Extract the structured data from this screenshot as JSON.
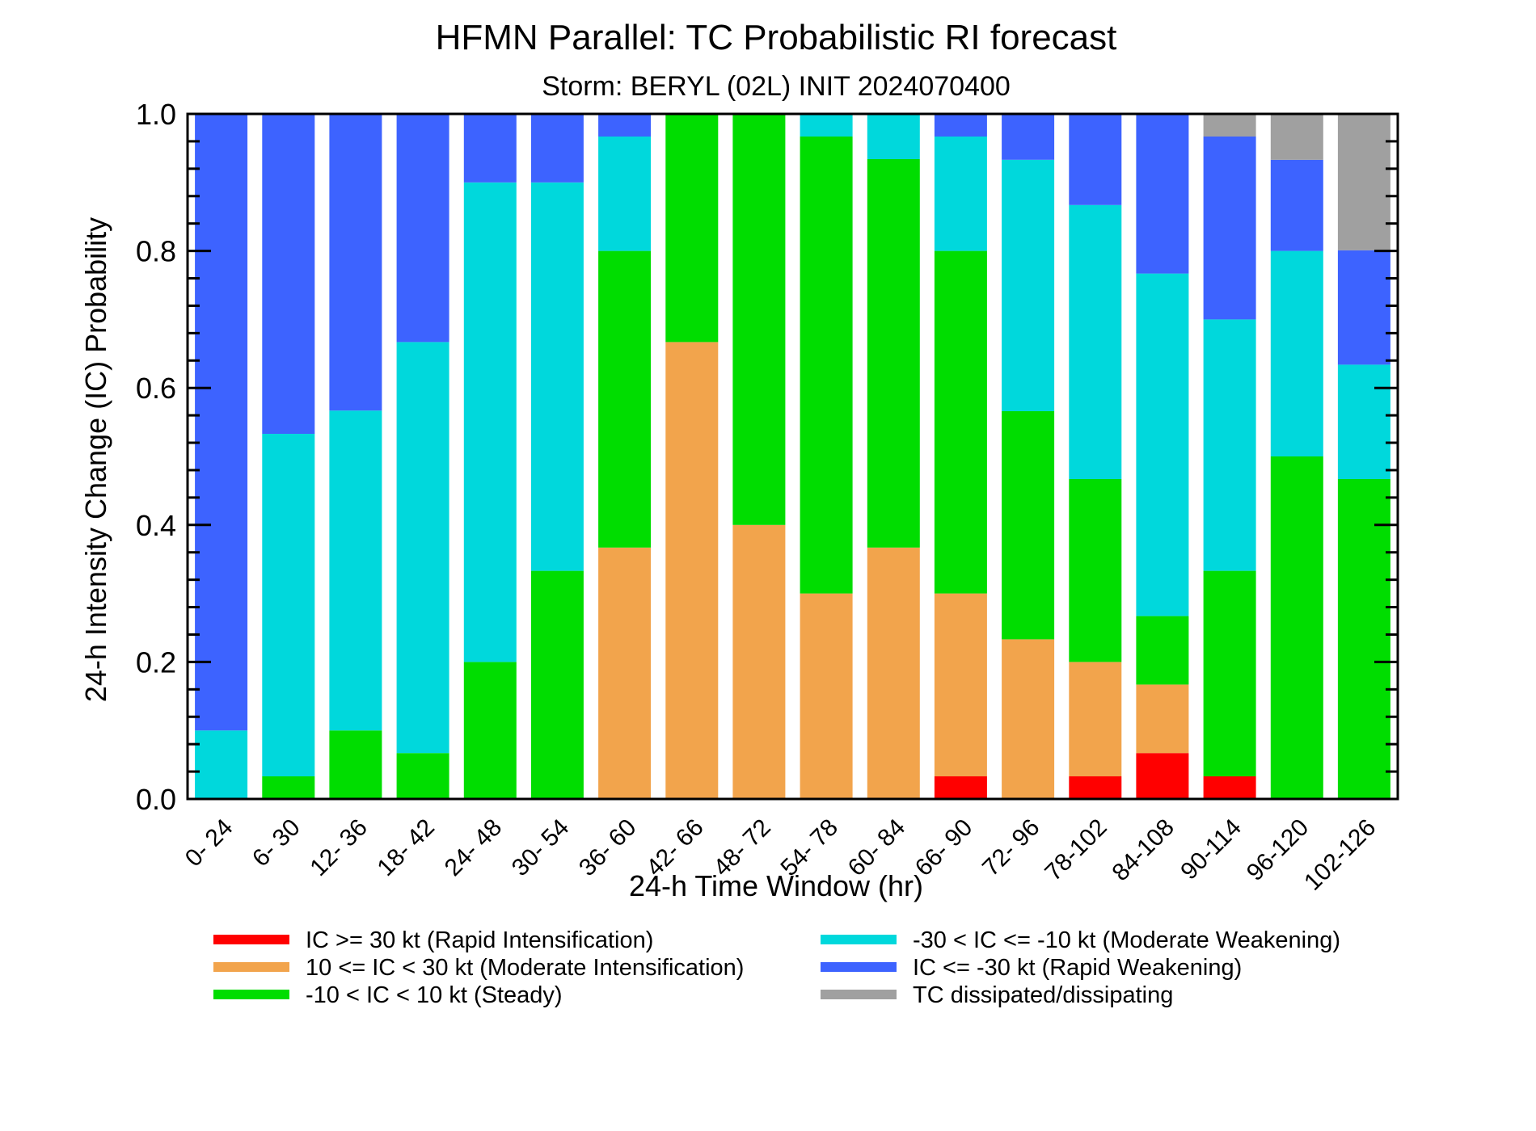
{
  "chart_data": {
    "type": "bar",
    "stacked": true,
    "title": "HFMN Parallel: TC Probabilistic RI forecast",
    "subtitle": "Storm: BERYL (02L) INIT 2024070400",
    "xlabel": "24-h Time Window (hr)",
    "ylabel": "24-h Intensity Change (IC) Probability",
    "ylim": [
      0,
      1
    ],
    "yticks": [
      "0.0",
      "0.2",
      "0.4",
      "0.6",
      "0.8",
      "1.0"
    ],
    "grid": false,
    "legend_position": "bottom",
    "categories": [
      "0- 24",
      "6- 30",
      "12- 36",
      "18- 42",
      "24- 48",
      "30- 54",
      "36- 60",
      "42- 66",
      "48- 72",
      "54- 78",
      "60- 84",
      "66- 90",
      "72- 96",
      "78-102",
      "84-108",
      "90-114",
      "96-120",
      "102-126"
    ],
    "series": [
      {
        "name": "IC >= 30 kt (Rapid Intensification)",
        "color": "#ff0000",
        "values": [
          0,
          0,
          0,
          0,
          0,
          0,
          0,
          0,
          0,
          0,
          0,
          0.033,
          0,
          0.033,
          0.067,
          0.033,
          0,
          0
        ]
      },
      {
        "name": "10 <= IC < 30 kt (Moderate Intensification)",
        "color": "#f2a44c",
        "values": [
          0,
          0,
          0,
          0,
          0,
          0,
          0.367,
          0.667,
          0.4,
          0.3,
          0.367,
          0.267,
          0.233,
          0.167,
          0.1,
          0,
          0,
          0
        ]
      },
      {
        "name": "-10 < IC < 10 kt (Steady)",
        "color": "#00dd00",
        "values": [
          0,
          0.033,
          0.1,
          0.067,
          0.2,
          0.333,
          0.433,
          0.333,
          0.6,
          0.667,
          0.567,
          0.5,
          0.333,
          0.267,
          0.1,
          0.3,
          0.5,
          0.467
        ]
      },
      {
        "name": "-30 < IC <= -10 kt (Moderate Weakening)",
        "color": "#00d8dc",
        "values": [
          0.1,
          0.5,
          0.467,
          0.6,
          0.7,
          0.567,
          0.167,
          0,
          0,
          0.033,
          0.067,
          0.167,
          0.367,
          0.4,
          0.5,
          0.367,
          0.3,
          0.167
        ]
      },
      {
        "name": "IC <= -30 kt (Rapid Weakening)",
        "color": "#3d63ff",
        "values": [
          0.9,
          0.467,
          0.433,
          0.333,
          0.1,
          0.1,
          0.033,
          0,
          0,
          0,
          0,
          0.033,
          0.067,
          0.133,
          0.233,
          0.267,
          0.133,
          0.167
        ]
      },
      {
        "name": "TC dissipated/dissipating",
        "color": "#a0a0a0",
        "values": [
          0,
          0,
          0,
          0,
          0,
          0,
          0,
          0,
          0,
          0,
          0,
          0,
          0,
          0,
          0,
          0.033,
          0.067,
          0.2
        ]
      }
    ]
  }
}
